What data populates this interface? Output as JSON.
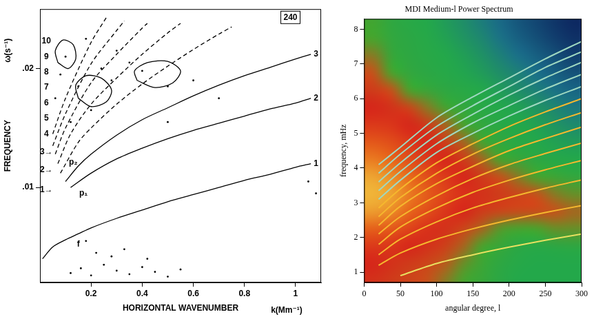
{
  "chart_data": [
    {
      "type": "line",
      "x_label": "HORIZONTAL WAVENUMBER",
      "y_label": "FREQUENCY",
      "x_unit": "k(Mm⁻¹)",
      "y_unit": "ω(s⁻¹)",
      "panel_id": {
        "text": "240",
        "x": 0.98,
        "y": 0.0243
      },
      "xlim": [
        0,
        1.1
      ],
      "ylim": [
        0.002,
        0.025
      ],
      "xticks": [
        0.2,
        0.4,
        0.6,
        0.8,
        1
      ],
      "yticks": [
        {
          "value": 0.01,
          "label": ".01"
        },
        {
          "value": 0.02,
          "label": ".02"
        }
      ],
      "grid": false,
      "annotations": [
        {
          "text": "f",
          "x": 0.15,
          "y": 0.0052
        },
        {
          "text": "p₁",
          "x": 0.17,
          "y": 0.0095
        },
        {
          "text": "p₂",
          "x": 0.13,
          "y": 0.0121
        },
        {
          "text": "1",
          "x": 1.08,
          "y": 0.012
        },
        {
          "text": "2",
          "x": 1.08,
          "y": 0.0175
        },
        {
          "text": "3",
          "x": 1.08,
          "y": 0.0212
        },
        {
          "text": "1→",
          "x": 0.025,
          "y": 0.0098
        },
        {
          "text": "2→",
          "x": 0.025,
          "y": 0.0115
        },
        {
          "text": "3→",
          "x": 0.025,
          "y": 0.013
        },
        {
          "text": "4",
          "x": 0.025,
          "y": 0.0145
        },
        {
          "text": "5",
          "x": 0.025,
          "y": 0.0158
        },
        {
          "text": "6",
          "x": 0.025,
          "y": 0.0171
        },
        {
          "text": "7",
          "x": 0.025,
          "y": 0.0184
        },
        {
          "text": "8",
          "x": 0.025,
          "y": 0.0197
        },
        {
          "text": "9",
          "x": 0.025,
          "y": 0.021
        },
        {
          "text": "10",
          "x": 0.025,
          "y": 0.0223
        }
      ],
      "series": [
        {
          "type": "line",
          "color": "#000000",
          "line_style": "solid",
          "x": [
            0.01,
            0.05,
            0.1,
            0.15,
            0.2,
            0.3,
            0.4,
            0.5,
            0.6,
            0.7,
            0.8,
            0.9,
            1.0,
            1.06
          ],
          "values": [
            0.004,
            0.005,
            0.0056,
            0.0061,
            0.0066,
            0.0074,
            0.0081,
            0.0088,
            0.0094,
            0.01,
            0.0106,
            0.0111,
            0.0117,
            0.012
          ]
        },
        {
          "type": "line",
          "color": "#000000",
          "line_style": "solid",
          "x": [
            0.12,
            0.2,
            0.3,
            0.4,
            0.5,
            0.6,
            0.7,
            0.8,
            0.9,
            1.0,
            1.06
          ],
          "values": [
            0.01,
            0.0112,
            0.0124,
            0.0133,
            0.0141,
            0.0148,
            0.0154,
            0.016,
            0.0166,
            0.0171,
            0.0175
          ]
        },
        {
          "type": "line",
          "color": "#000000",
          "line_style": "solid",
          "x": [
            0.1,
            0.15,
            0.2,
            0.3,
            0.4,
            0.5,
            0.6,
            0.7,
            0.8,
            0.9,
            1.0,
            1.06
          ],
          "values": [
            0.0105,
            0.0118,
            0.0128,
            0.0144,
            0.0157,
            0.0167,
            0.0177,
            0.0186,
            0.0194,
            0.0201,
            0.0208,
            0.0212
          ]
        },
        {
          "type": "line",
          "color": "#000000",
          "line_style": "dashed",
          "x": [
            0.08,
            0.15,
            0.2,
            0.3,
            0.4,
            0.5,
            0.6,
            0.7,
            0.75
          ],
          "values": [
            0.0112,
            0.0138,
            0.015,
            0.017,
            0.0187,
            0.0202,
            0.0216,
            0.0229,
            0.0235
          ]
        },
        {
          "type": "line",
          "color": "#000000",
          "line_style": "dashed",
          "x": [
            0.07,
            0.12,
            0.2,
            0.3,
            0.4,
            0.5,
            0.55
          ],
          "values": [
            0.012,
            0.0145,
            0.017,
            0.0192,
            0.0212,
            0.023,
            0.0238
          ]
        },
        {
          "type": "line",
          "color": "#000000",
          "line_style": "dashed",
          "x": [
            0.06,
            0.1,
            0.2,
            0.3,
            0.4,
            0.42
          ],
          "values": [
            0.0128,
            0.015,
            0.0188,
            0.0212,
            0.0234,
            0.0238
          ]
        },
        {
          "type": "line",
          "color": "#000000",
          "line_style": "dashed",
          "x": [
            0.05,
            0.1,
            0.2,
            0.3,
            0.33
          ],
          "values": [
            0.0135,
            0.0162,
            0.0204,
            0.0232,
            0.024
          ]
        },
        {
          "type": "line",
          "color": "#000000",
          "line_style": "dashed",
          "x": [
            0.05,
            0.1,
            0.2,
            0.26
          ],
          "values": [
            0.0145,
            0.0175,
            0.0222,
            0.0243
          ]
        },
        {
          "type": "line",
          "color": "#000000",
          "line_style": "solid",
          "x": [
            0.15,
            0.2,
            0.26,
            0.28,
            0.24,
            0.18,
            0.14,
            0.15
          ],
          "values": [
            0.0175,
            0.0168,
            0.0172,
            0.0182,
            0.0192,
            0.0194,
            0.0186,
            0.0175
          ]
        },
        {
          "type": "line",
          "color": "#000000",
          "line_style": "solid",
          "x": [
            0.38,
            0.45,
            0.52,
            0.55,
            0.5,
            0.42,
            0.37,
            0.38
          ],
          "values": [
            0.019,
            0.0184,
            0.0188,
            0.0198,
            0.0206,
            0.0205,
            0.0198,
            0.019
          ]
        },
        {
          "type": "line",
          "color": "#000000",
          "line_style": "solid",
          "x": [
            0.07,
            0.11,
            0.14,
            0.13,
            0.09,
            0.06,
            0.07
          ],
          "values": [
            0.0205,
            0.02,
            0.0208,
            0.022,
            0.0224,
            0.0215,
            0.0205
          ]
        },
        {
          "type": "scatter",
          "color": "#000000",
          "marker": "dot",
          "x": [
            0.12,
            0.16,
            0.2,
            0.25,
            0.3,
            0.35,
            0.4,
            0.45,
            0.5,
            0.55,
            0.22,
            0.28,
            0.33,
            0.42,
            0.18,
            0.06,
            0.08,
            0.1,
            0.12,
            0.15,
            0.18,
            0.2,
            0.24,
            0.28,
            0.3,
            0.35,
            0.4,
            0.5,
            0.6,
            0.7,
            0.5,
            1.05,
            1.08
          ],
          "values": [
            0.0028,
            0.0032,
            0.0026,
            0.0035,
            0.003,
            0.0027,
            0.0033,
            0.0029,
            0.0025,
            0.0031,
            0.0045,
            0.0042,
            0.0048,
            0.004,
            0.0055,
            0.0175,
            0.0195,
            0.021,
            0.0155,
            0.0185,
            0.0225,
            0.0165,
            0.02,
            0.019,
            0.0215,
            0.0205,
            0.0198,
            0.0185,
            0.019,
            0.0175,
            0.0155,
            0.0105,
            0.0095
          ]
        }
      ]
    },
    {
      "type": "heatmap",
      "title": "MDI Medium-l Power Spectrum",
      "x_label": "angular degree, l",
      "y_label": "frequency, mHz",
      "xlim": [
        0,
        300
      ],
      "ylim": [
        0.7,
        8.3
      ],
      "xticks": [
        0,
        50,
        100,
        150,
        200,
        250,
        300
      ],
      "yticks": [
        1,
        2,
        3,
        4,
        5,
        6,
        7,
        8
      ],
      "grid": false,
      "heatmap": {
        "x_edges": [
          0,
          25,
          50,
          75,
          100,
          125,
          150,
          175,
          200,
          225,
          250,
          275,
          300
        ],
        "y_edges": [
          0.5,
          1,
          1.5,
          2,
          2.5,
          3,
          3.5,
          4,
          4.5,
          5,
          5.5,
          6,
          6.5,
          7,
          7.5,
          8,
          8.5
        ],
        "cells": [
          [
            0.7,
            0.68,
            0.66,
            0.64,
            0.6,
            0.55,
            0.5,
            0.45,
            0.42,
            0.42,
            0.42,
            0.42
          ],
          [
            0.72,
            0.7,
            0.68,
            0.66,
            0.63,
            0.58,
            0.52,
            0.46,
            0.43,
            0.42,
            0.42,
            0.42
          ],
          [
            0.76,
            0.75,
            0.72,
            0.7,
            0.67,
            0.62,
            0.56,
            0.5,
            0.45,
            0.44,
            0.45,
            0.46
          ],
          [
            0.84,
            0.82,
            0.78,
            0.74,
            0.7,
            0.66,
            0.62,
            0.57,
            0.55,
            0.56,
            0.58,
            0.58
          ],
          [
            0.92,
            0.9,
            0.85,
            0.8,
            0.75,
            0.72,
            0.68,
            0.66,
            0.65,
            0.65,
            0.64,
            0.62
          ],
          [
            0.95,
            0.93,
            0.88,
            0.83,
            0.78,
            0.74,
            0.7,
            0.68,
            0.66,
            0.64,
            0.6,
            0.58
          ],
          [
            0.93,
            0.9,
            0.86,
            0.8,
            0.76,
            0.72,
            0.68,
            0.64,
            0.6,
            0.56,
            0.52,
            0.48
          ],
          [
            0.88,
            0.85,
            0.8,
            0.76,
            0.72,
            0.68,
            0.62,
            0.56,
            0.5,
            0.46,
            0.43,
            0.42
          ],
          [
            0.82,
            0.8,
            0.76,
            0.72,
            0.67,
            0.62,
            0.55,
            0.48,
            0.44,
            0.42,
            0.4,
            0.38
          ],
          [
            0.76,
            0.75,
            0.72,
            0.68,
            0.62,
            0.55,
            0.48,
            0.44,
            0.42,
            0.4,
            0.36,
            0.33
          ],
          [
            0.72,
            0.7,
            0.66,
            0.6,
            0.54,
            0.48,
            0.44,
            0.42,
            0.4,
            0.36,
            0.32,
            0.28
          ],
          [
            0.68,
            0.64,
            0.56,
            0.5,
            0.46,
            0.44,
            0.42,
            0.38,
            0.34,
            0.3,
            0.26,
            0.22
          ],
          [
            0.64,
            0.56,
            0.48,
            0.45,
            0.43,
            0.41,
            0.38,
            0.34,
            0.3,
            0.25,
            0.2,
            0.16
          ],
          [
            0.6,
            0.5,
            0.46,
            0.44,
            0.42,
            0.39,
            0.35,
            0.3,
            0.25,
            0.2,
            0.15,
            0.1
          ],
          [
            0.56,
            0.48,
            0.45,
            0.43,
            0.4,
            0.36,
            0.32,
            0.26,
            0.2,
            0.15,
            0.1,
            0.06
          ],
          [
            0.54,
            0.47,
            0.44,
            0.42,
            0.38,
            0.34,
            0.29,
            0.23,
            0.17,
            0.12,
            0.07,
            0.03
          ]
        ]
      },
      "series": [
        {
          "type": "line",
          "color": "#e8e060",
          "x": [
            50,
            100,
            150,
            200,
            250,
            300
          ],
          "values": [
            0.9,
            1.25,
            1.5,
            1.72,
            1.92,
            2.1
          ]
        },
        {
          "type": "line",
          "color": "#f5b82e",
          "x": [
            20,
            50,
            100,
            150,
            200,
            250,
            300
          ],
          "values": [
            1.2,
            1.55,
            1.95,
            2.25,
            2.5,
            2.72,
            2.92
          ]
        },
        {
          "type": "line",
          "color": "#f5b82e",
          "x": [
            20,
            50,
            100,
            150,
            200,
            250,
            300
          ],
          "values": [
            1.5,
            1.95,
            2.45,
            2.85,
            3.15,
            3.42,
            3.66
          ]
        },
        {
          "type": "line",
          "color": "#f5b82e",
          "x": [
            20,
            50,
            100,
            150,
            200,
            250,
            300
          ],
          "values": [
            1.8,
            2.3,
            2.85,
            3.3,
            3.65,
            3.95,
            4.22
          ]
        },
        {
          "type": "line",
          "color": "#f5b82e",
          "x": [
            20,
            50,
            100,
            150,
            200,
            250,
            300
          ],
          "values": [
            2.1,
            2.6,
            3.2,
            3.7,
            4.1,
            4.42,
            4.72
          ]
        },
        {
          "type": "line",
          "color": "#f5b82e",
          "x": [
            20,
            50,
            100,
            150,
            200,
            250,
            300
          ],
          "values": [
            2.35,
            2.9,
            3.55,
            4.05,
            4.5,
            4.85,
            5.18
          ]
        },
        {
          "type": "line",
          "color": "#f5b82e",
          "x": [
            20,
            50,
            100,
            150,
            200,
            250,
            300
          ],
          "values": [
            2.6,
            3.15,
            3.85,
            4.4,
            4.85,
            5.25,
            5.6
          ]
        },
        {
          "type": "line",
          "color": "#f5b82e",
          "x": [
            20,
            50,
            100,
            150,
            200,
            250,
            300
          ],
          "values": [
            2.85,
            3.4,
            4.15,
            4.7,
            5.2,
            5.62,
            6.0
          ]
        },
        {
          "type": "line",
          "color": "#9fd8c0",
          "x": [
            20,
            50,
            100,
            150,
            200,
            250,
            300
          ],
          "values": [
            3.1,
            3.65,
            4.45,
            5.0,
            5.5,
            5.95,
            6.35
          ]
        },
        {
          "type": "line",
          "color": "#9fd8c0",
          "x": [
            20,
            50,
            100,
            150,
            200,
            250,
            300
          ],
          "values": [
            3.35,
            3.9,
            4.7,
            5.3,
            5.8,
            6.28,
            6.7
          ]
        },
        {
          "type": "line",
          "color": "#9fd8c0",
          "x": [
            20,
            50,
            100,
            150,
            200,
            250,
            300
          ],
          "values": [
            3.6,
            4.15,
            4.95,
            5.55,
            6.1,
            6.6,
            7.05
          ]
        },
        {
          "type": "line",
          "color": "#9fd8c0",
          "x": [
            20,
            50,
            100,
            150,
            200,
            250,
            300
          ],
          "values": [
            3.85,
            4.4,
            5.2,
            5.8,
            6.35,
            6.9,
            7.35
          ]
        },
        {
          "type": "line",
          "color": "#9fd8c0",
          "x": [
            20,
            50,
            100,
            150,
            200,
            250,
            300
          ],
          "values": [
            4.1,
            4.6,
            5.45,
            6.05,
            6.6,
            7.15,
            7.65
          ]
        }
      ]
    }
  ]
}
